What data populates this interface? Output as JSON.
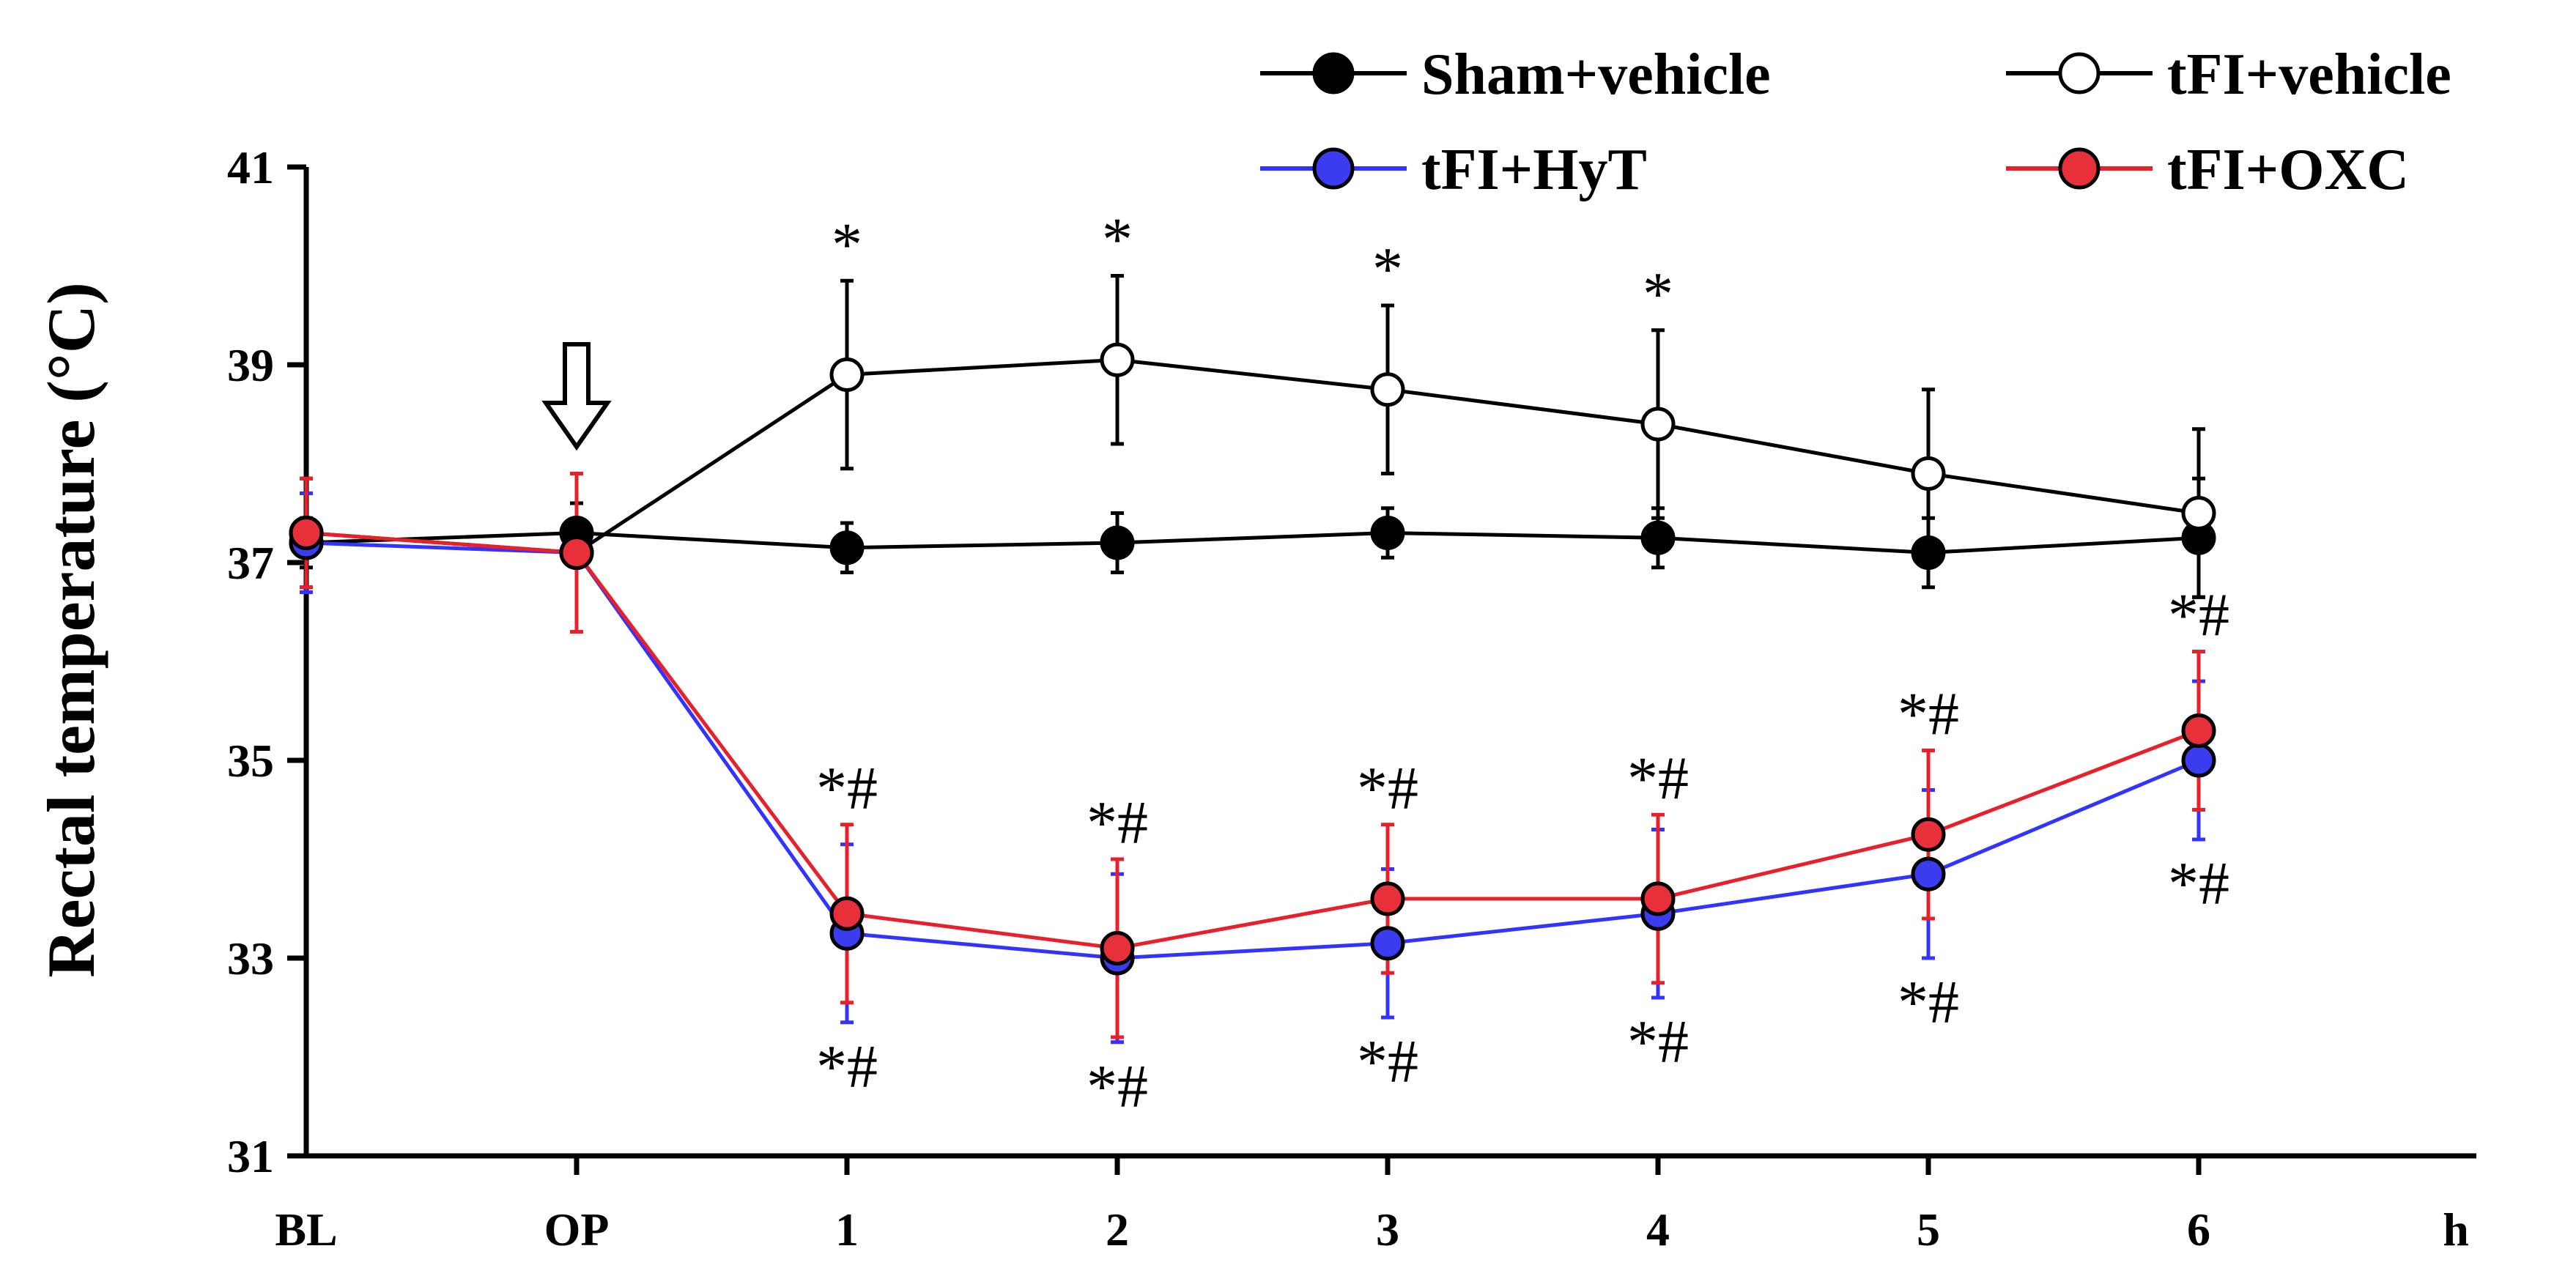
{
  "chart_data": {
    "type": "line",
    "title": "",
    "xlabel": "",
    "ylabel": "Rectal temperature (°C)",
    "x_unit": "h",
    "categories": [
      "BL",
      "OP",
      "1",
      "2",
      "3",
      "4",
      "5",
      "6"
    ],
    "ylim": [
      31,
      41
    ],
    "yticks": [
      "31",
      "33",
      "35",
      "37",
      "39",
      "41"
    ],
    "grid": false,
    "legend_position": "top-right",
    "intervention_marker": {
      "category": "OP",
      "symbol": "down-arrow"
    },
    "series": [
      {
        "name": "Sham+vehicle",
        "line_color": "#000000",
        "marker_fill": "#000000",
        "marker_stroke": "#000000",
        "values": [
          37.2,
          37.3,
          37.15,
          37.2,
          37.3,
          37.25,
          37.1,
          37.25
        ],
        "errors": [
          0.25,
          0.3,
          0.25,
          0.3,
          0.25,
          0.3,
          0.35,
          0.6
        ]
      },
      {
        "name": "tFI+vehicle",
        "line_color": "#000000",
        "marker_fill": "#ffffff",
        "marker_stroke": "#000000",
        "values": [
          37.3,
          37.1,
          38.9,
          39.05,
          38.75,
          38.4,
          37.9,
          37.5
        ],
        "errors": [
          0.55,
          0.8,
          0.95,
          0.85,
          0.85,
          0.95,
          0.85,
          0.85
        ]
      },
      {
        "name": "tFI+HyT",
        "line_color": "#3333ff",
        "marker_fill": "#3b3bf0",
        "marker_stroke": "#000000",
        "values": [
          37.2,
          37.1,
          33.25,
          33.0,
          33.15,
          33.45,
          33.85,
          35.0
        ],
        "errors": [
          0.5,
          0.8,
          0.9,
          0.85,
          0.75,
          0.85,
          0.85,
          0.8
        ]
      },
      {
        "name": "tFI+OXC",
        "line_color": "#e8202a",
        "marker_fill": "#e8303a",
        "marker_stroke": "#000000",
        "values": [
          37.3,
          37.1,
          33.45,
          33.1,
          33.6,
          33.6,
          34.25,
          35.3
        ],
        "errors": [
          0.55,
          0.8,
          0.9,
          0.9,
          0.75,
          0.85,
          0.85,
          0.8
        ]
      }
    ],
    "annotations": [
      {
        "category": "1",
        "text": "*",
        "series": "tFI+vehicle",
        "side": "above"
      },
      {
        "category": "2",
        "text": "*",
        "series": "tFI+vehicle",
        "side": "above"
      },
      {
        "category": "3",
        "text": "*",
        "series": "tFI+vehicle",
        "side": "above"
      },
      {
        "category": "4",
        "text": "*",
        "series": "tFI+vehicle",
        "side": "above"
      },
      {
        "category": "1",
        "text": "*#",
        "series": "tFI+OXC",
        "side": "above"
      },
      {
        "category": "2",
        "text": "*#",
        "series": "tFI+OXC",
        "side": "above"
      },
      {
        "category": "3",
        "text": "*#",
        "series": "tFI+OXC",
        "side": "above"
      },
      {
        "category": "4",
        "text": "*#",
        "series": "tFI+OXC",
        "side": "above"
      },
      {
        "category": "5",
        "text": "*#",
        "series": "tFI+OXC",
        "side": "above"
      },
      {
        "category": "6",
        "text": "*#",
        "series": "tFI+OXC",
        "side": "above"
      },
      {
        "category": "1",
        "text": "*#",
        "series": "tFI+HyT",
        "side": "below"
      },
      {
        "category": "2",
        "text": "*#",
        "series": "tFI+HyT",
        "side": "below"
      },
      {
        "category": "3",
        "text": "*#",
        "series": "tFI+HyT",
        "side": "below"
      },
      {
        "category": "4",
        "text": "*#",
        "series": "tFI+HyT",
        "side": "below"
      },
      {
        "category": "5",
        "text": "*#",
        "series": "tFI+HyT",
        "side": "below"
      },
      {
        "category": "6",
        "text": "*#",
        "series": "tFI+HyT",
        "side": "below"
      }
    ]
  }
}
